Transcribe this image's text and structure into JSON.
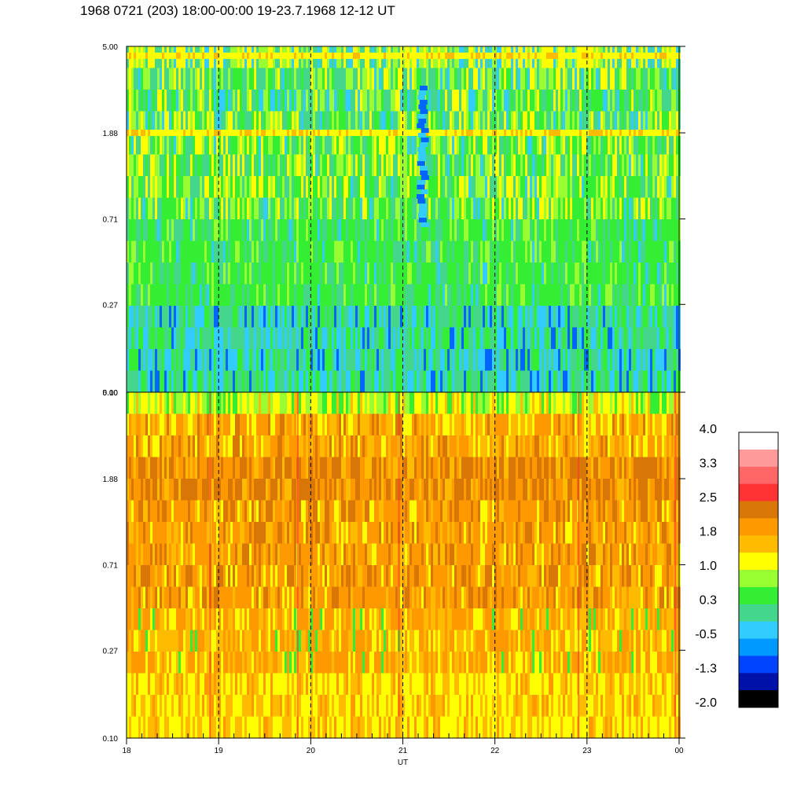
{
  "title": "1968 0721 (203) 18:00-00:00 19-23.7.1968  12-12 UT",
  "chart_data": [
    {
      "type": "heatmap",
      "panel": "upper",
      "y_scale": "log",
      "y_range": [
        0.1,
        5.0
      ],
      "y_ticks": [
        "5.00",
        "1.88",
        "0.71",
        "0.27",
        "0.10"
      ],
      "x_range": [
        18,
        24
      ],
      "dominant_levels": {
        "5.00-1.88": "green/yellow with cyan",
        "1.88-0.71": "green/yellow",
        "0.71-0.27": "green",
        "0.27-0.10": "cyan/blue"
      },
      "bright_bands_at": [
        4.5,
        1.88
      ],
      "dashed_lines_at": [
        19,
        20,
        21,
        22,
        23
      ]
    },
    {
      "type": "heatmap",
      "panel": "lower",
      "y_scale": "log",
      "y_range": [
        0.1,
        5.0
      ],
      "y_ticks": [
        "5.00",
        "1.88",
        "0.71",
        "0.27",
        "0.10"
      ],
      "x_range": [
        18,
        24
      ],
      "xlabel": "UT",
      "x_ticks": [
        "18",
        "19",
        "20",
        "21",
        "22",
        "23",
        "00"
      ],
      "dominant_levels": {
        "5.00-3.00": "yellow/green",
        "3.00-1.00": "dark orange",
        "1.00-0.30": "orange",
        "0.30-0.10": "yellow"
      },
      "dashed_lines_at": [
        19,
        20,
        21,
        22,
        23
      ]
    }
  ],
  "colorbar": {
    "labels": [
      "4.0",
      "3.3",
      "2.5",
      "1.8",
      "1.0",
      "0.3",
      "-0.5",
      "-1.3",
      "-2.0"
    ],
    "colors": [
      "#ffffff",
      "#ff9a9a",
      "#ff6666",
      "#ff3333",
      "#d97706",
      "#ff9900",
      "#ffbb00",
      "#ffff00",
      "#99ff33",
      "#33ee33",
      "#44d68a",
      "#33ccff",
      "#0099ff",
      "#0044ff",
      "#0011aa",
      "#000000"
    ]
  }
}
